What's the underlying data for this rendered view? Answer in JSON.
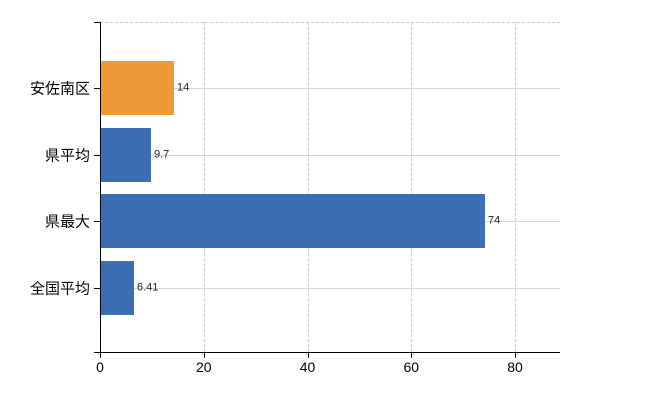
{
  "chart_data": {
    "type": "bar",
    "orientation": "horizontal",
    "title": "",
    "xlabel": "",
    "ylabel": "",
    "categories": [
      "安佐南区",
      "県平均",
      "県最大",
      "全国平均"
    ],
    "values": [
      14,
      9.7,
      74,
      6.41
    ],
    "value_labels": [
      "14",
      "9.7",
      "74",
      "6.41"
    ],
    "bar_colors": [
      "#ee9838",
      "#3d6eb3",
      "#3d6eb3",
      "#3d6eb3"
    ],
    "x_ticks": [
      0,
      20,
      40,
      60,
      80
    ],
    "x_tick_labels": [
      "0",
      "20",
      "40",
      "60",
      "80"
    ],
    "xlim": [
      0,
      88.7
    ],
    "grid": true,
    "legend": false,
    "gridline_style": {
      "vertical": "dashed",
      "horizontal": "solid",
      "top_border": "dashed"
    }
  },
  "colors": {
    "background": "#ffffff",
    "axis": "#000000",
    "grid_vertical": "#c9c9c9",
    "grid_horizontal": "#d3dad3",
    "category_text": "#000000",
    "value_text": "#1c1c28",
    "highlight_bar": "#ee9838",
    "default_bar": "#3d6eb3"
  }
}
